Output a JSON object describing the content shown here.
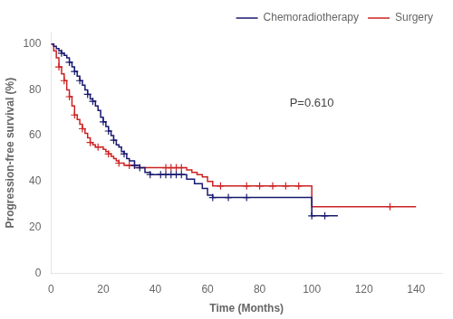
{
  "chart_data": {
    "type": "line",
    "line_style": "step",
    "xlabel": "Time (Months)",
    "ylabel": "Progression-free survival (%)",
    "annotation": "P=0.610",
    "xlim": [
      0,
      150
    ],
    "ylim": [
      0,
      105
    ],
    "xticks": [
      0,
      20,
      40,
      60,
      80,
      100,
      120,
      140
    ],
    "yticks": [
      0,
      20,
      40,
      60,
      80,
      100
    ],
    "grid": false,
    "legend": "upper right",
    "series": [
      {
        "name": "Chemoradiotherapy",
        "color": "#191970",
        "marker": "plus",
        "x": [
          0,
          1,
          2,
          3,
          4,
          5,
          6,
          7,
          8,
          9,
          10,
          11,
          12,
          13,
          14,
          15,
          16,
          17,
          18,
          19,
          20,
          21,
          22,
          23,
          24,
          25,
          26,
          27,
          28,
          29,
          30,
          32,
          34,
          36,
          38,
          40,
          42,
          44,
          46,
          48,
          50,
          52,
          55,
          58,
          60,
          62,
          65,
          68,
          70,
          75,
          80,
          85,
          90,
          95,
          100,
          105,
          110
        ],
        "values": [
          100,
          99,
          98,
          97,
          96,
          95,
          94,
          92,
          90,
          88,
          86,
          84,
          82,
          80,
          78,
          76,
          75,
          73,
          71,
          68,
          66,
          64,
          62,
          60,
          58,
          56,
          55,
          53,
          52,
          50,
          49,
          47,
          46,
          44,
          43,
          43,
          43,
          43,
          43,
          43,
          43,
          41,
          39,
          37,
          34,
          33,
          33,
          33,
          33,
          33,
          33,
          33,
          33,
          33,
          25,
          25,
          25
        ],
        "censors": {
          "x": [
            4,
            7,
            9,
            11,
            14,
            16,
            20,
            22,
            24,
            28,
            32,
            34,
            38,
            42,
            44,
            46,
            48,
            50,
            62,
            68,
            75,
            100,
            105
          ],
          "y": [
            96,
            92,
            88,
            84,
            78,
            75,
            66,
            62,
            58,
            52,
            47,
            46,
            43,
            43,
            43,
            43,
            43,
            43,
            33,
            33,
            33,
            25,
            25
          ]
        }
      },
      {
        "name": "Surgery",
        "color": "#cc2222",
        "marker": "plus",
        "x": [
          0,
          1,
          2,
          3,
          4,
          5,
          6,
          7,
          8,
          9,
          10,
          11,
          12,
          13,
          14,
          15,
          16,
          17,
          18,
          19,
          20,
          21,
          22,
          23,
          24,
          25,
          26,
          27,
          28,
          29,
          30,
          32,
          34,
          36,
          38,
          40,
          42,
          44,
          46,
          48,
          50,
          52,
          54,
          56,
          58,
          60,
          62,
          65,
          70,
          75,
          80,
          85,
          90,
          95,
          100,
          105,
          110,
          130,
          140
        ],
        "values": [
          100,
          97,
          94,
          90,
          87,
          84,
          80,
          77,
          73,
          69,
          67,
          65,
          63,
          61,
          59,
          57,
          56,
          55,
          55,
          55,
          54,
          53,
          52,
          51,
          50,
          49,
          48,
          48,
          47,
          47,
          47,
          46,
          46,
          46,
          46,
          46,
          46,
          46,
          46,
          46,
          46,
          45,
          44,
          43,
          42,
          40,
          38,
          38,
          38,
          38,
          38,
          38,
          38,
          38,
          29,
          29,
          29,
          29,
          29
        ],
        "censors": {
          "x": [
            3,
            5,
            7,
            9,
            12,
            15,
            18,
            22,
            26,
            30,
            44,
            46,
            48,
            50,
            65,
            75,
            80,
            85,
            90,
            95,
            130
          ],
          "y": [
            90,
            84,
            77,
            69,
            63,
            57,
            55,
            52,
            48,
            47,
            46,
            46,
            46,
            46,
            38,
            38,
            38,
            38,
            38,
            38,
            29
          ]
        }
      }
    ]
  }
}
